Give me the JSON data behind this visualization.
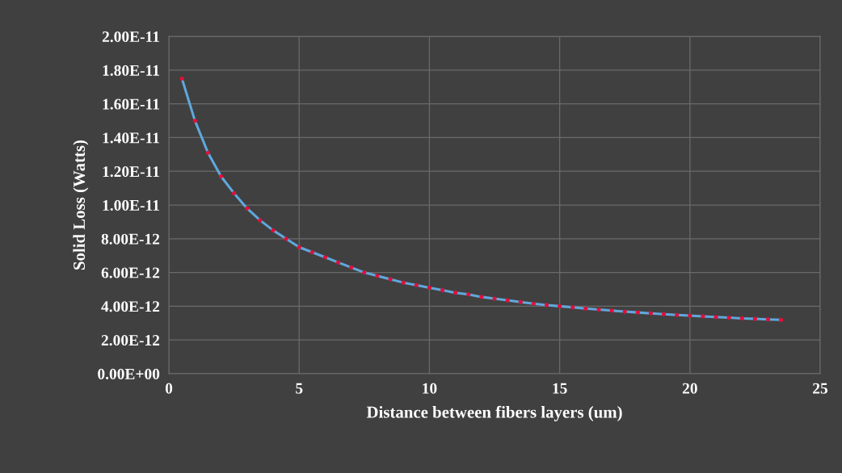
{
  "chart_data": {
    "type": "line",
    "xlabel": "Distance between fibers layers (um)",
    "ylabel": "Solid Loss (Watts)",
    "x": [
      0.5,
      1,
      1.5,
      2,
      2.5,
      3,
      3.5,
      4,
      4.5,
      5,
      5.5,
      6,
      6.5,
      7,
      7.5,
      8,
      8.5,
      9,
      9.5,
      10,
      10.5,
      11,
      11.5,
      12,
      12.5,
      13,
      13.5,
      14,
      14.5,
      15,
      15.5,
      16,
      16.5,
      17,
      17.5,
      18,
      18.5,
      19,
      19.5,
      20,
      20.5,
      21,
      21.5,
      22,
      22.5,
      23,
      23.5
    ],
    "series": [
      {
        "color": "#5fa8dc",
        "colors": [
          "#e0103a",
          "#e0103a",
          "#e0103a",
          "#e0103a",
          "#e0103a",
          "#e0103a",
          "#e0103a",
          "#e0103a",
          "#e0103a",
          "#e0103a",
          "#e0103a",
          "#e0103a",
          "#e0103a",
          "#e0103a",
          "#e0103a",
          "#e0103a",
          "#e0103a",
          "#e0103a",
          "#e0103a",
          "#e0103a",
          "#e0103a",
          "#e0103a",
          "#e0103a",
          "#e0103a",
          "#e0103a",
          "#e0103a",
          "#e0103a",
          "#e0103a",
          "#e0103a",
          "#e0103a",
          "#e0103a",
          "#e0103a",
          "#e0103a",
          "#e0103a",
          "#e0103a",
          "#e0103a",
          "#e0103a",
          "#e0103a",
          "#e0103a",
          "#e0103a",
          "#e0103a",
          "#e0103a",
          "#e0103a",
          "#e0103a",
          "#e0103a",
          "#e0103a",
          "#e0103a"
        ],
        "values": [
          1.75e-11,
          1.5e-11,
          1.31e-11,
          1.17e-11,
          1.07e-11,
          9.8e-12,
          9.1e-12,
          8.5e-12,
          8e-12,
          7.5e-12,
          7.2e-12,
          6.9e-12,
          6.6e-12,
          6.3e-12,
          6e-12,
          5.8e-12,
          5.6e-12,
          5.4e-12,
          5.25e-12,
          5.1e-12,
          4.95e-12,
          4.8e-12,
          4.7e-12,
          4.55e-12,
          4.45e-12,
          4.35e-12,
          4.25e-12,
          4.15e-12,
          4.07e-12,
          4e-12,
          3.93e-12,
          3.86e-12,
          3.8e-12,
          3.74e-12,
          3.68e-12,
          3.63e-12,
          3.58e-12,
          3.53e-12,
          3.48e-12,
          3.44e-12,
          3.4e-12,
          3.36e-12,
          3.32e-12,
          3.28e-12,
          3.25e-12,
          3.22e-12,
          3.19e-12
        ]
      }
    ],
    "xlim": [
      0,
      25
    ],
    "xticks": [
      0,
      5,
      10,
      15,
      20,
      25
    ],
    "ylim": [
      0,
      2e-11
    ],
    "yticks": [
      {
        "value": 0,
        "label": "0.00E+00"
      },
      {
        "value": 2e-12,
        "label": "2.00E-12"
      },
      {
        "value": 4e-12,
        "label": "4.00E-12"
      },
      {
        "value": 6e-12,
        "label": "6.00E-12"
      },
      {
        "value": 8e-12,
        "label": "8.00E-12"
      },
      {
        "value": 1e-11,
        "label": "1.00E-11"
      },
      {
        "value": 1.2e-11,
        "label": "1.20E-11"
      },
      {
        "value": 1.4e-11,
        "label": "1.40E-11"
      },
      {
        "value": 1.6e-11,
        "label": "1.60E-11"
      },
      {
        "value": 1.8e-11,
        "label": "1.80E-11"
      },
      {
        "value": 2e-11,
        "label": "2.00E-11"
      }
    ],
    "grid": true,
    "marker": "circle",
    "line_style": "solid",
    "legend": false
  }
}
